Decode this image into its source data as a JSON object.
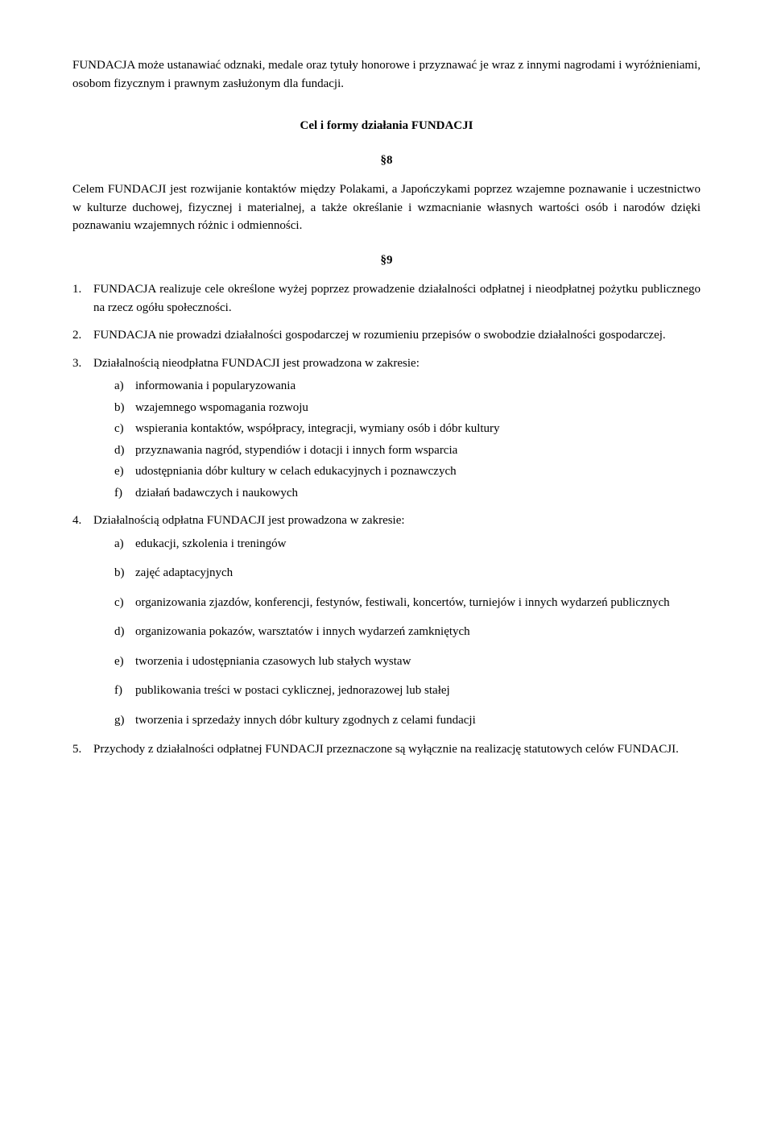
{
  "introPara": "FUNDACJA może ustanawiać odznaki, medale oraz tytuły honorowe i przyznawać je wraz z innymi nagrodami i wyróżnieniami, osobom fizycznym i prawnym zasłużonym dla fundacji.",
  "sectionHeading": "Cel i formy działania FUNDACJI",
  "s8": {
    "num": "§8",
    "text": "Celem FUNDACJI jest rozwijanie kontaktów między Polakami, a Japończykami poprzez wzajemne poznawanie i uczestnictwo w kulturze duchowej, fizycznej i materialnej, a także określanie i wzmacnianie własnych wartości osób i narodów dzięki poznawaniu wzajemnych różnic i odmienności."
  },
  "s9": {
    "num": "§9",
    "items": {
      "1": "FUNDACJA realizuje cele określone wyżej poprzez prowadzenie działalności odpłatnej i nieodpłatnej pożytku publicznego na rzecz ogółu społeczności.",
      "2": "FUNDACJA nie prowadzi działalności gospodarczej w rozumieniu przepisów o swobodzie działalności gospodarczej.",
      "3": {
        "lead": "Działalnością nieodpłatna FUNDACJI jest prowadzona w zakresie:",
        "a": "informowania i popularyzowania",
        "b": "wzajemnego wspomagania rozwoju",
        "c": "wspierania kontaktów, współpracy, integracji, wymiany osób i dóbr kultury",
        "d": "przyznawania nagród, stypendiów i dotacji i innych form wsparcia",
        "e": "udostępniania dóbr kultury w celach edukacyjnych i poznawczych",
        "f": "działań badawczych i naukowych"
      },
      "4": {
        "lead": "Działalnością odpłatna FUNDACJI jest prowadzona w zakresie:",
        "a": "edukacji, szkolenia i treningów",
        "b": "zajęć adaptacyjnych",
        "c": "organizowania zjazdów, konferencji, festynów, festiwali, koncertów, turniejów i innych wydarzeń publicznych",
        "d": "organizowania pokazów, warsztatów i innych wydarzeń zamkniętych",
        "e": "tworzenia i udostępniania czasowych lub stałych wystaw",
        "f": "publikowania treści w postaci cyklicznej, jednorazowej lub stałej",
        "g": "tworzenia i sprzedaży innych dóbr kultury zgodnych z celami fundacji"
      },
      "5": "Przychody z działalności odpłatnej FUNDACJI przeznaczone są wyłącznie na realizację statutowych celów FUNDACJI."
    }
  }
}
